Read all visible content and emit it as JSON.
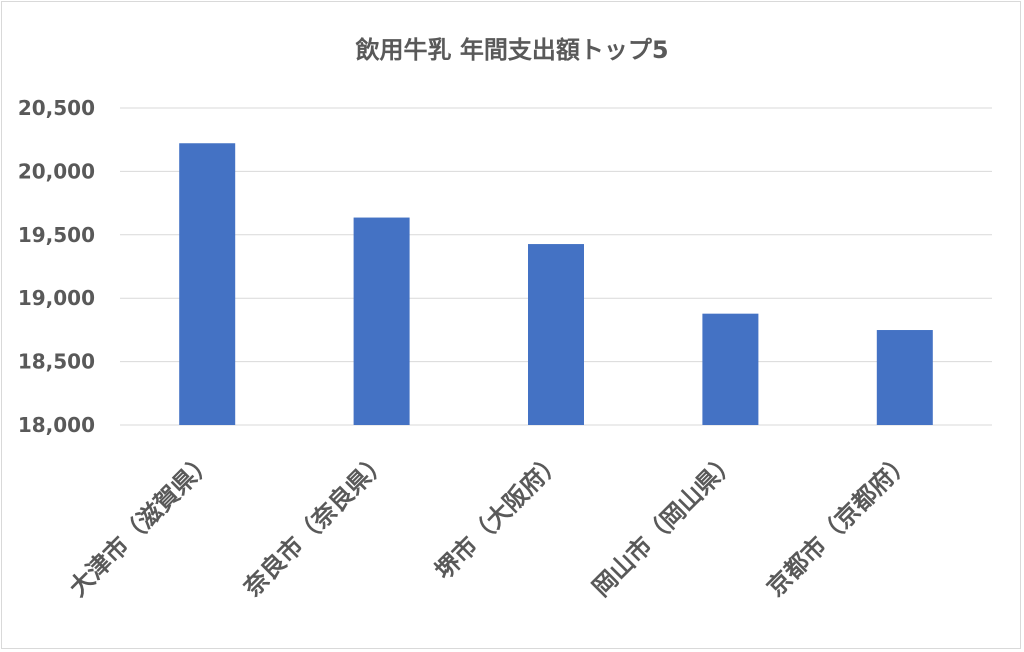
{
  "chart_data": {
    "type": "bar",
    "title": "飲用牛乳 年間支出額トップ5",
    "categories": [
      "大津市（滋賀県）",
      "奈良市（奈良県）",
      "堺市（大阪府）",
      "岡山市（岡山県）",
      "京都市（京都府）"
    ],
    "series": [
      {
        "values": [
          20222,
          19636,
          19427,
          18878,
          18749
        ]
      }
    ],
    "ylim": [
      18000,
      20500
    ],
    "yticks": [
      18000,
      18500,
      19000,
      19500,
      20000,
      20500
    ],
    "ytick_labels": [
      "18,000",
      "18,500",
      "19,000",
      "19,500",
      "20,000",
      "20,500"
    ],
    "grid": true,
    "bar_color": "#4472c4",
    "grid_color": "#d9d9d9",
    "text_color": "#595959"
  }
}
